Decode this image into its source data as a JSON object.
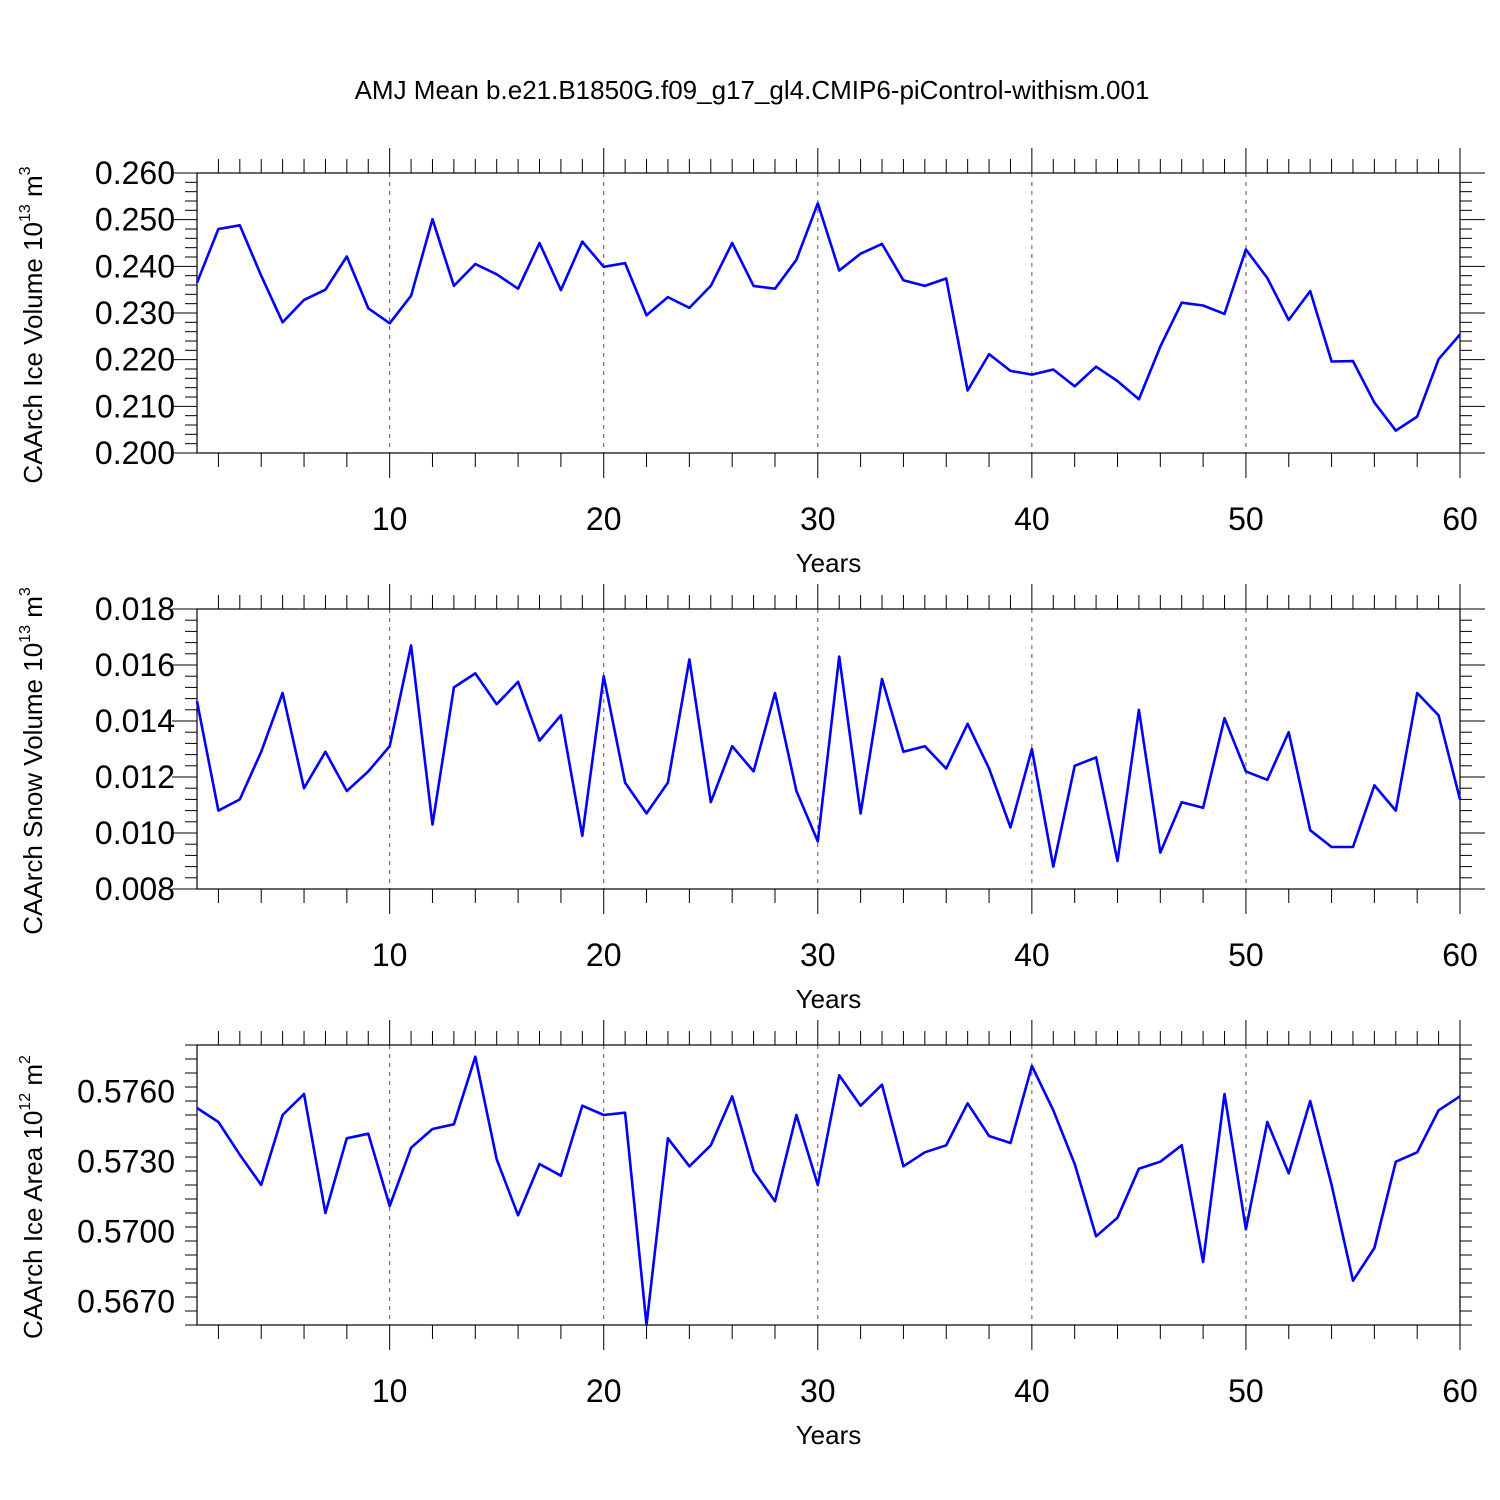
{
  "title": "AMJ Mean b.e21.B1850G.f09_g17_gl4.CMIP6-piControl-withism.001",
  "colors": {
    "series": "#0000ff",
    "axes": "#000000",
    "grid": "#555555"
  },
  "chart_data": [
    {
      "type": "line",
      "xlabel": "Years",
      "ylabel": {
        "main": "CAArch Ice Volume 10",
        "exp": "13",
        "unit": " m",
        "unit_exp": "3"
      },
      "xlim": [
        1,
        60
      ],
      "ylim": [
        0.2,
        0.26
      ],
      "x_ticks": [
        10,
        20,
        30,
        40,
        50,
        60
      ],
      "x_tick_labels": [
        "10",
        "20",
        "30",
        "40",
        "50",
        "60"
      ],
      "y_ticks": [
        0.2,
        0.21,
        0.22,
        0.23,
        0.24,
        0.25,
        0.26
      ],
      "y_tick_labels": [
        "0.200",
        "0.210",
        "0.220",
        "0.230",
        "0.240",
        "0.250",
        "0.260"
      ],
      "grid": "vertical dashed at labeled x ticks",
      "series": [
        {
          "values": [
            0.2365,
            0.248,
            0.2488,
            0.238,
            0.228,
            0.2328,
            0.235,
            0.2421,
            0.231,
            0.2278,
            0.2337,
            0.2501,
            0.2358,
            0.2405,
            0.2383,
            0.2352,
            0.245,
            0.2349,
            0.2453,
            0.2399,
            0.2407,
            0.2295,
            0.2334,
            0.2311,
            0.2358,
            0.245,
            0.2358,
            0.2352,
            0.2414,
            0.2535,
            0.2391,
            0.2427,
            0.2448,
            0.237,
            0.2358,
            0.2374,
            0.2134,
            0.2212,
            0.2176,
            0.2168,
            0.2179,
            0.2143,
            0.2185,
            0.2154,
            0.2115,
            0.2228,
            0.2322,
            0.2316,
            0.2298,
            0.2436,
            0.2375,
            0.2285,
            0.2347,
            0.2196,
            0.2197,
            0.2108,
            0.2048,
            0.2078,
            0.2201,
            0.2254
          ]
        }
      ]
    },
    {
      "type": "line",
      "xlabel": "Years",
      "ylabel": {
        "main": "CAArch Snow Volume 10",
        "exp": "13",
        "unit": " m",
        "unit_exp": "3"
      },
      "xlim": [
        1,
        60
      ],
      "ylim": [
        0.008,
        0.018
      ],
      "x_ticks": [
        10,
        20,
        30,
        40,
        50,
        60
      ],
      "x_tick_labels": [
        "10",
        "20",
        "30",
        "40",
        "50",
        "60"
      ],
      "y_ticks": [
        0.008,
        0.01,
        0.012,
        0.014,
        0.016,
        0.018
      ],
      "y_tick_labels": [
        "0.008",
        "0.010",
        "0.012",
        "0.014",
        "0.016",
        "0.018"
      ],
      "grid": "vertical dashed at labeled x ticks",
      "series": [
        {
          "values": [
            0.0147,
            0.0108,
            0.0112,
            0.0129,
            0.015,
            0.0116,
            0.0129,
            0.0115,
            0.0122,
            0.0131,
            0.0167,
            0.0103,
            0.0152,
            0.0157,
            0.0146,
            0.0154,
            0.0133,
            0.0142,
            0.0099,
            0.0156,
            0.0118,
            0.0107,
            0.0118,
            0.0162,
            0.0111,
            0.0131,
            0.0122,
            0.015,
            0.0115,
            0.0097,
            0.0163,
            0.0107,
            0.0155,
            0.0129,
            0.0131,
            0.0123,
            0.0139,
            0.0123,
            0.0102,
            0.013,
            0.0088,
            0.0124,
            0.0127,
            0.009,
            0.0144,
            0.0093,
            0.0111,
            0.0109,
            0.0141,
            0.0122,
            0.0119,
            0.0136,
            0.0101,
            0.0095,
            0.0095,
            0.0117,
            0.0108,
            0.015,
            0.0142,
            0.0112
          ]
        }
      ]
    },
    {
      "type": "line",
      "xlabel": "Years",
      "ylabel": {
        "main": "CAArch Ice Area 10",
        "exp": "12",
        "unit": " m",
        "unit_exp": "2"
      },
      "xlim": [
        1,
        60
      ],
      "ylim": [
        0.566,
        0.578
      ],
      "x_ticks": [
        10,
        20,
        30,
        40,
        50,
        60
      ],
      "x_tick_labels": [
        "10",
        "20",
        "30",
        "40",
        "50",
        "60"
      ],
      "y_ticks": [
        0.567,
        0.57,
        0.573,
        0.576
      ],
      "y_tick_labels": [
        "0.5670",
        "0.5700",
        "0.5730",
        "0.5760"
      ],
      "grid": "vertical dashed at labeled x ticks",
      "series": [
        {
          "values": [
            0.5753,
            0.5747,
            0.5733,
            0.572,
            0.575,
            0.5759,
            0.5708,
            0.574,
            0.5742,
            0.5711,
            0.5736,
            0.5744,
            0.5746,
            0.5775,
            0.5731,
            0.5707,
            0.5729,
            0.5724,
            0.5754,
            0.575,
            0.5751,
            0.566,
            0.574,
            0.5728,
            0.5737,
            0.5758,
            0.5726,
            0.5713,
            0.575,
            0.572,
            0.5767,
            0.5754,
            0.5763,
            0.5728,
            0.5734,
            0.5737,
            0.5755,
            0.5741,
            0.5738,
            0.5771,
            0.5752,
            0.5729,
            0.5698,
            0.5706,
            0.5727,
            0.573,
            0.5737,
            0.5687,
            0.5759,
            0.5701,
            0.5747,
            0.5725,
            0.5756,
            0.572,
            0.5679,
            0.5693,
            0.573,
            0.5734,
            0.5752,
            0.5758
          ]
        }
      ]
    }
  ]
}
